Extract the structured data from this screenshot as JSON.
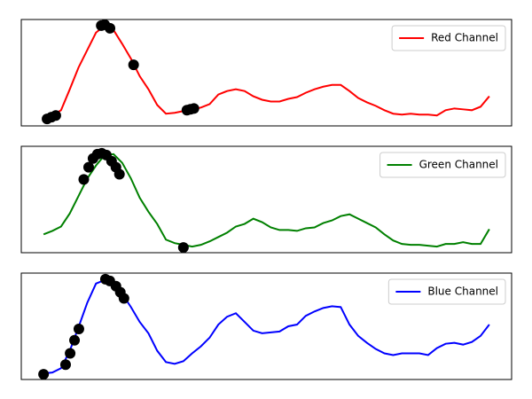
{
  "chart_data": [
    {
      "type": "line",
      "legend": "upper right",
      "xlim": [
        -12.75,
        267.75
      ],
      "ylim": [
        0,
        122
      ],
      "x": [
        0,
        5,
        10,
        15,
        20,
        25,
        30,
        35,
        40,
        45,
        50,
        55,
        60,
        65,
        70,
        75,
        80,
        85,
        90,
        95,
        100,
        105,
        110,
        115,
        120,
        125,
        130,
        135,
        140,
        145,
        150,
        155,
        160,
        165,
        170,
        175,
        180,
        185,
        190,
        195,
        200,
        205,
        210,
        215,
        220,
        225,
        230,
        235,
        240,
        245,
        250,
        255
      ],
      "series": [
        {
          "name": "Red Channel",
          "color": "#ff0000",
          "values": [
            8,
            12,
            18,
            42,
            67,
            87,
            107,
            115,
            110,
            94,
            77,
            57,
            42,
            24,
            14,
            15,
            17,
            19,
            21,
            25,
            36,
            40,
            42,
            40,
            34,
            30,
            28,
            28,
            31,
            33,
            38,
            42,
            45,
            47,
            47,
            40,
            32,
            27,
            23,
            18,
            14,
            13,
            14,
            13,
            13,
            12,
            18,
            20,
            19,
            18,
            22,
            34
          ]
        }
      ],
      "markers": {
        "color": "#000000",
        "x": [
          2,
          4.5,
          7,
          33,
          35,
          38,
          51.5,
          82,
          84,
          86
        ],
        "values": [
          8,
          10,
          12,
          115,
          116,
          112,
          70,
          18,
          19,
          20
        ]
      }
    },
    {
      "type": "line",
      "legend": "upper right",
      "xlim": [
        -12.75,
        267.75
      ],
      "ylim": [
        0,
        122
      ],
      "x": [
        0,
        5,
        10,
        15,
        20,
        25,
        30,
        35,
        40,
        45,
        50,
        55,
        60,
        65,
        70,
        75,
        80,
        85,
        90,
        95,
        100,
        105,
        110,
        115,
        120,
        125,
        130,
        135,
        140,
        145,
        150,
        155,
        160,
        165,
        170,
        175,
        180,
        185,
        190,
        195,
        200,
        205,
        210,
        215,
        220,
        225,
        230,
        235,
        240,
        245,
        250,
        255
      ],
      "series": [
        {
          "name": "Green Channel",
          "color": "#008000",
          "values": [
            21,
            25,
            30,
            45,
            65,
            85,
            100,
            112,
            113,
            103,
            85,
            63,
            47,
            33,
            15,
            11,
            9,
            7,
            9,
            13,
            18,
            23,
            30,
            33,
            39,
            35,
            29,
            26,
            26,
            25,
            28,
            29,
            34,
            37,
            42,
            44,
            39,
            34,
            29,
            21,
            14,
            10,
            9,
            9,
            8,
            7,
            10,
            10,
            12,
            10,
            10,
            27
          ]
        }
      ],
      "markers": {
        "color": "#000000",
        "x": [
          23,
          25.8,
          28.3,
          30.8,
          33.3,
          35.9,
          38.9,
          41.4,
          43.4,
          80
        ],
        "values": [
          84,
          98,
          108,
          113,
          114,
          112,
          105,
          98,
          90,
          6
        ]
      }
    },
    {
      "type": "line",
      "legend": "upper right",
      "xlim": [
        -12.75,
        267.75
      ],
      "ylim": [
        0,
        122
      ],
      "x": [
        0,
        5,
        10,
        15,
        20,
        25,
        30,
        35,
        40,
        45,
        50,
        55,
        60,
        65,
        70,
        75,
        80,
        85,
        90,
        95,
        100,
        105,
        110,
        115,
        120,
        125,
        130,
        135,
        140,
        145,
        150,
        155,
        160,
        165,
        170,
        175,
        180,
        185,
        190,
        195,
        200,
        205,
        210,
        215,
        220,
        225,
        230,
        235,
        240,
        245,
        250,
        255
      ],
      "series": [
        {
          "name": "Blue Channel",
          "color": "#0000ff",
          "values": [
            7,
            8,
            13,
            33,
            60,
            88,
            110,
            114,
            110,
            98,
            83,
            66,
            53,
            33,
            20,
            18,
            21,
            30,
            38,
            48,
            63,
            72,
            76,
            66,
            56,
            53,
            54,
            55,
            61,
            63,
            73,
            78,
            82,
            84,
            83,
            63,
            50,
            42,
            35,
            30,
            28,
            30,
            30,
            30,
            28,
            36,
            41,
            42,
            40,
            43,
            50,
            63
          ]
        }
      ],
      "markers": {
        "color": "#000000",
        "x": [
          0,
          12.6,
          15.2,
          17.7,
          20.2,
          35.4,
          37.9,
          41.4,
          43.9,
          46
        ],
        "values": [
          6,
          17,
          30,
          45,
          58,
          115,
          113,
          107,
          100,
          93
        ]
      }
    }
  ]
}
